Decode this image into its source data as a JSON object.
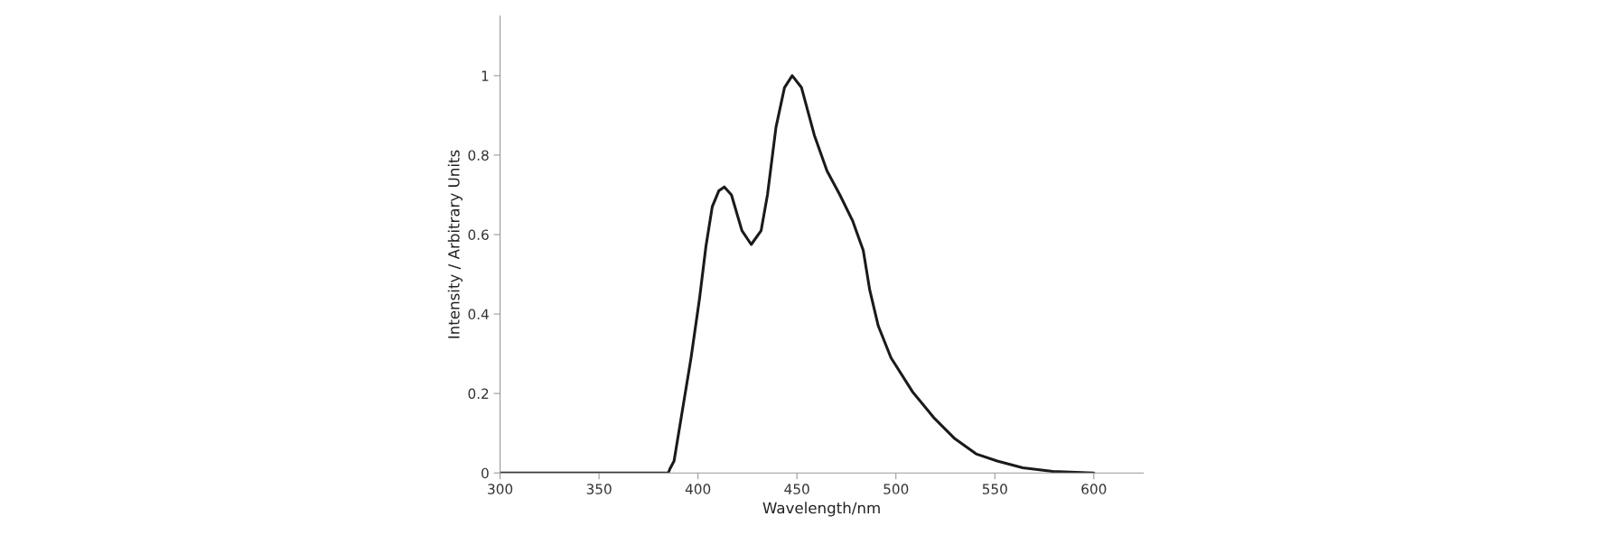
{
  "chart_data": {
    "type": "line",
    "xlabel": "Wavelength/nm",
    "ylabel": "Intensity / Arbitrary Units",
    "xlim": [
      300,
      625
    ],
    "ylim": [
      0,
      1.15
    ],
    "xticks": [
      300,
      350,
      400,
      450,
      500,
      550,
      600
    ],
    "yticks": [
      0,
      0.2,
      0.4,
      0.6,
      0.8,
      1
    ],
    "grid": false,
    "marker": "none",
    "line_style": "solid",
    "series": [
      {
        "color": "#1a1a1a",
        "x": [
          300,
          385,
          385.8,
          387.9,
          392.2,
          396.5,
          400.8,
          404.0,
          407.2,
          410.5,
          413.3,
          416.9,
          422.2,
          426.9,
          431.9,
          435.1,
          439.4,
          443.7,
          447.6,
          452.3,
          458.8,
          465.2,
          471.7,
          478.1,
          483.5,
          486.8,
          491.1,
          497.5,
          508.3,
          519.0,
          529.8,
          540.5,
          551.2,
          564.1,
          579.2,
          600
        ],
        "values": [
          0,
          0,
          0.01,
          0.03,
          0.16,
          0.29,
          0.44,
          0.57,
          0.67,
          0.71,
          0.72,
          0.7,
          0.61,
          0.575,
          0.61,
          0.7,
          0.87,
          0.97,
          1.0,
          0.97,
          0.85,
          0.76,
          0.7,
          0.635,
          0.56,
          0.46,
          0.37,
          0.29,
          0.205,
          0.14,
          0.086,
          0.048,
          0.03,
          0.013,
          0.004,
          0
        ]
      }
    ]
  }
}
